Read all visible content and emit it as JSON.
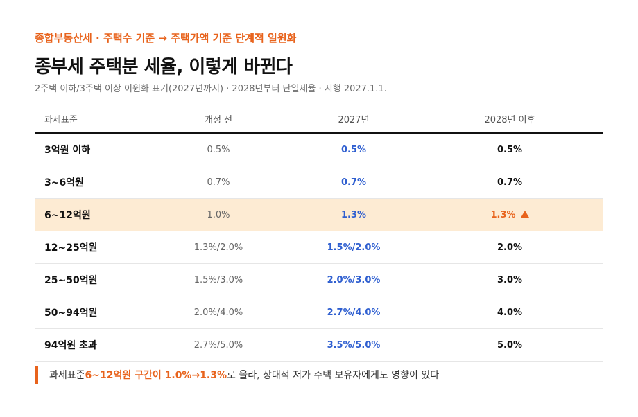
{
  "header": {
    "kicker": "종합부동산세 · 주택수 기준 → 주택가액 기준 단계적 일원화",
    "title": "종부세 주택분 세율, 이렇게 바뀐다",
    "subtitle": "2주택 이하/3주택 이상 이원화 표기(2027년까지) · 2028년부터 단일세율 · 시행 2027.1.1."
  },
  "table": {
    "columns": [
      "과세표준",
      "개정 전",
      "2027년",
      "2028년 이후"
    ],
    "rows": [
      {
        "bracket": "3억원 이하",
        "before": "0.5%",
        "y2027": "0.5%",
        "y2028": "0.5%"
      },
      {
        "bracket": "3~6억원",
        "before": "0.7%",
        "y2027": "0.7%",
        "y2028": "0.7%"
      },
      {
        "bracket": "6~12억원",
        "before": "1.0%",
        "y2027": "1.3%",
        "y2028": "1.3%"
      },
      {
        "bracket": "12~25억원",
        "before": "1.3%/2.0%",
        "y2027": "1.5%/2.0%",
        "y2028": "2.0%"
      },
      {
        "bracket": "25~50억원",
        "before": "1.5%/3.0%",
        "y2027": "2.0%/3.0%",
        "y2028": "3.0%"
      },
      {
        "bracket": "50~94억원",
        "before": "2.0%/4.0%",
        "y2027": "2.7%/4.0%",
        "y2028": "4.0%"
      },
      {
        "bracket": "94억원 초과",
        "before": "2.7%/5.0%",
        "y2027": "3.5%/5.0%",
        "y2028": "5.0%"
      }
    ],
    "highlight_row": "6~12억원",
    "highlight_marker_icon": "triangle-up-icon"
  },
  "note": {
    "prefix": "과세표준 ",
    "emphasis": "6~12억원 구간이 1.0%→1.3%",
    "suffix": "로 올라, 상대적 저가 주택 보유자에게도 영향이 있다"
  },
  "colors": {
    "accent": "#e8631c",
    "blue": "#2f5fd0",
    "highlight_bg": "#fdebd3"
  }
}
